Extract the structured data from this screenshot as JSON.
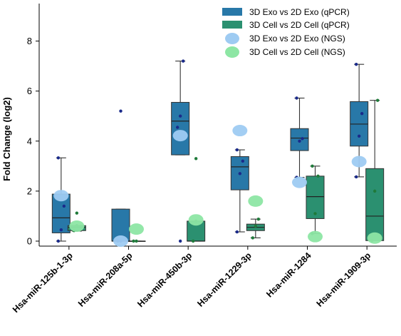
{
  "chart_data": {
    "type": "box",
    "title": "",
    "xlabel": "",
    "ylabel": "Fold Change (log2)",
    "ylim": [
      -0.2,
      9.5
    ],
    "yticks": [
      0,
      2,
      4,
      6,
      8
    ],
    "categories": [
      "Hsa-miR-125b-1-3p",
      "Hsa-miR-208a-5p",
      "Hsa-miR-450b-3p",
      "Hsa-miR-1229-3p",
      "Hsa-miR-1284",
      "Hsa-miR-1909-3p"
    ],
    "legend": {
      "placement": "top-right",
      "entries": [
        "3D Exo vs 2D Exo (qPCR)",
        "3D Cell vs 2D Cell (qPCR)",
        "3D Exo vs 2D Exo (NGS)",
        "3D Cell vs 2D Cell (NGS)"
      ]
    },
    "series": [
      {
        "name": "3D Exo vs 2D Exo (qPCR)",
        "kind": "box",
        "color": "#2878a8",
        "boxes": [
          {
            "min": 0.0,
            "q1": 0.33,
            "median": 0.93,
            "q3": 1.88,
            "max": 3.33,
            "points": [
              0.0,
              0.45,
              1.4,
              3.33
            ]
          },
          {
            "min": 0.0,
            "q1": 0.0,
            "median": 0.0,
            "q3": 1.28,
            "max": 1.28,
            "fliers": [
              5.2
            ],
            "points": [
              0.0,
              0.0
            ]
          },
          {
            "min": 3.45,
            "q1": 3.45,
            "median": 4.8,
            "q3": 5.55,
            "max": 7.2,
            "fliers": [
              0.0
            ],
            "points": [
              4.55,
              5.0,
              7.2
            ]
          },
          {
            "min": 0.37,
            "q1": 2.05,
            "median": 2.97,
            "q3": 3.38,
            "max": 3.65,
            "points": [
              0.37,
              2.7,
              3.2,
              3.65
            ]
          },
          {
            "min": 2.55,
            "q1": 3.62,
            "median": 4.12,
            "q3": 4.5,
            "max": 5.72,
            "points": [
              2.55,
              4.0,
              4.1,
              5.72
            ]
          },
          {
            "min": 2.57,
            "q1": 3.8,
            "median": 4.68,
            "q3": 5.58,
            "max": 7.07,
            "points": [
              2.57,
              4.2,
              5.1,
              7.07
            ]
          }
        ]
      },
      {
        "name": "3D Cell vs 2D Cell (qPCR)",
        "kind": "box",
        "color": "#2b9070",
        "boxes": [
          {
            "min": 0.4,
            "q1": 0.42,
            "median": 0.55,
            "q3": 0.62,
            "max": 0.62,
            "fliers": [
              1.12
            ],
            "points": [
              0.42,
              0.62
            ]
          },
          {
            "min": 0.0,
            "q1": 0.0,
            "median": 0.0,
            "q3": 0.0,
            "max": 0.0,
            "points": [
              0.0,
              0.0
            ]
          },
          {
            "min": 0.0,
            "q1": 0.0,
            "median": 0.0,
            "q3": 0.8,
            "max": 0.8,
            "fliers": [
              3.3
            ],
            "points": [
              0.0,
              0.8
            ]
          },
          {
            "min": 0.13,
            "q1": 0.42,
            "median": 0.55,
            "q3": 0.68,
            "max": 0.88,
            "points": [
              0.13,
              0.6,
              0.88
            ]
          },
          {
            "min": 0.3,
            "q1": 0.9,
            "median": 1.78,
            "q3": 2.6,
            "max": 3.0,
            "points": [
              0.3,
              1.1,
              2.6,
              3.0
            ]
          },
          {
            "min": 0.02,
            "q1": 0.02,
            "median": 1.0,
            "q3": 2.9,
            "max": 5.63,
            "points": [
              0.02,
              2.0,
              5.63
            ]
          }
        ]
      },
      {
        "name": "3D Exo vs 2D Exo (NGS)",
        "kind": "point",
        "color": "#9ecbf2",
        "values": [
          1.82,
          0.0,
          4.22,
          4.42,
          2.35,
          3.18
        ]
      },
      {
        "name": "3D Cell vs 2D Cell (NGS)",
        "kind": "point",
        "color": "#8de6a4",
        "values": [
          0.6,
          0.48,
          0.85,
          1.6,
          0.18,
          0.12
        ]
      }
    ],
    "colors": {
      "exo_qpcr_dot": "#1a2a8a",
      "cell_qpcr_dot": "#1f7a3a",
      "axis": "#000000",
      "whisker": "#333333"
    }
  }
}
